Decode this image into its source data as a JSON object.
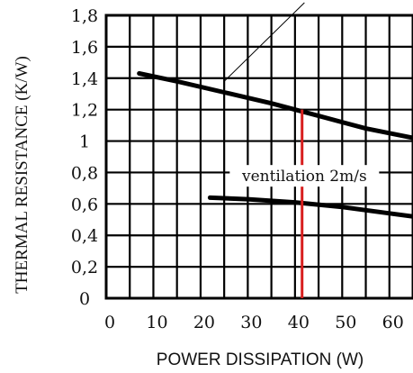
{
  "chart_data": {
    "type": "line",
    "xlabel": "POWER DISSIPATION (W)",
    "ylabel": "THERMAL RESISTANCE (K/W)",
    "xlim": [
      0,
      65
    ],
    "ylim": [
      0,
      1.8
    ],
    "x_ticks": [
      "0",
      "10",
      "20",
      "30",
      "40",
      "50",
      "60"
    ],
    "y_ticks": [
      "0",
      "0,2",
      "0,4",
      "0,6",
      "0,8",
      "1",
      "1,2",
      "1,4",
      "1,6",
      "1,8"
    ],
    "grid": true,
    "series": [
      {
        "name": "",
        "x": [
          7,
          15,
          25,
          35,
          45,
          55,
          65
        ],
        "y": [
          1.43,
          1.38,
          1.31,
          1.24,
          1.16,
          1.08,
          1.02
        ]
      },
      {
        "name": "ventilation 2m/s",
        "x": [
          22,
          30,
          40,
          50,
          60,
          65
        ],
        "y": [
          0.64,
          0.63,
          0.61,
          0.58,
          0.54,
          0.52
        ]
      }
    ],
    "annotations": [
      {
        "text": "ventilation 2m/s",
        "x": 42,
        "y": 0.75
      }
    ],
    "leader_line": {
      "x": [
        25,
        42
      ],
      "y": [
        1.38,
        1.88
      ]
    },
    "marker_line": {
      "x": 41.5,
      "y_from": 0,
      "y_to": 1.2,
      "color": "#d81e1e"
    },
    "colors": {
      "curve": "#000000",
      "grid": "#000000",
      "marker": "#d81e1e"
    }
  }
}
